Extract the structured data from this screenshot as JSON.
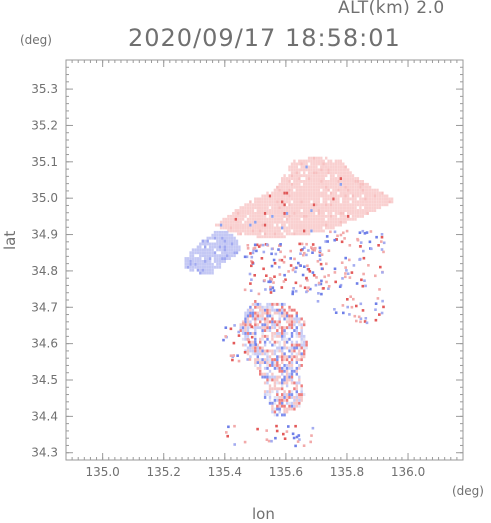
{
  "header": {
    "altitude_label": "ALT(km) 2.0",
    "timestamp": "2020/09/17 18:58:01"
  },
  "chart_data": {
    "type": "heatmap",
    "title": "2020/09/17 18:58:01",
    "subtitle": "ALT(km) 2.0",
    "xlabel": "lon",
    "ylabel": "lat",
    "x_unit": "(deg)",
    "y_unit": "(deg)",
    "xlim": [
      134.88,
      136.18
    ],
    "ylim": [
      34.28,
      35.38
    ],
    "x_ticks": [
      135.0,
      135.2,
      135.4,
      135.6,
      135.8,
      136.0
    ],
    "y_ticks": [
      34.3,
      34.4,
      34.5,
      34.6,
      34.7,
      34.8,
      34.9,
      35.0,
      35.1,
      35.2,
      35.3
    ],
    "x_tick_labels": [
      "135.0",
      "135.2",
      "135.4",
      "135.6",
      "135.8",
      "136.0"
    ],
    "y_tick_labels": [
      "34.3",
      "34.4",
      "34.5",
      "34.6",
      "34.7",
      "34.8",
      "34.9",
      "35.0",
      "35.1",
      "35.2",
      "35.3"
    ],
    "grid": false,
    "colors": {
      "positive": "#f4a0a0",
      "negative": "#a8b0f0",
      "axis": "#9a9a9a"
    },
    "regions": [
      {
        "name": "north-band-positive",
        "sign": 1,
        "polygon": [
          [
            135.36,
            34.92
          ],
          [
            135.46,
            34.98
          ],
          [
            135.56,
            35.02
          ],
          [
            135.62,
            35.1
          ],
          [
            135.7,
            35.11
          ],
          [
            135.78,
            35.1
          ],
          [
            135.82,
            35.06
          ],
          [
            135.9,
            35.02
          ],
          [
            135.96,
            34.99
          ],
          [
            135.86,
            34.95
          ],
          [
            135.78,
            34.92
          ],
          [
            135.7,
            34.9
          ],
          [
            135.6,
            34.89
          ],
          [
            135.5,
            34.89
          ],
          [
            135.42,
            34.9
          ]
        ]
      },
      {
        "name": "west-lobe-negative",
        "sign": -1,
        "polygon": [
          [
            135.26,
            34.83
          ],
          [
            135.3,
            34.86
          ],
          [
            135.35,
            34.9
          ],
          [
            135.4,
            34.91
          ],
          [
            135.44,
            34.88
          ],
          [
            135.45,
            34.85
          ],
          [
            135.4,
            34.82
          ],
          [
            135.36,
            34.79
          ],
          [
            135.31,
            34.79
          ],
          [
            135.27,
            34.8
          ]
        ]
      },
      {
        "name": "south-body-mixed",
        "sign": 0,
        "polygon": [
          [
            135.5,
            34.72
          ],
          [
            135.56,
            34.71
          ],
          [
            135.62,
            34.7
          ],
          [
            135.66,
            34.66
          ],
          [
            135.67,
            34.6
          ],
          [
            135.65,
            34.54
          ],
          [
            135.64,
            34.5
          ],
          [
            135.66,
            34.46
          ],
          [
            135.64,
            34.42
          ],
          [
            135.6,
            34.4
          ],
          [
            135.56,
            34.4
          ],
          [
            135.52,
            34.43
          ],
          [
            135.53,
            34.48
          ],
          [
            135.5,
            34.53
          ],
          [
            135.46,
            34.58
          ],
          [
            135.44,
            34.63
          ],
          [
            135.46,
            34.68
          ]
        ]
      }
    ]
  }
}
